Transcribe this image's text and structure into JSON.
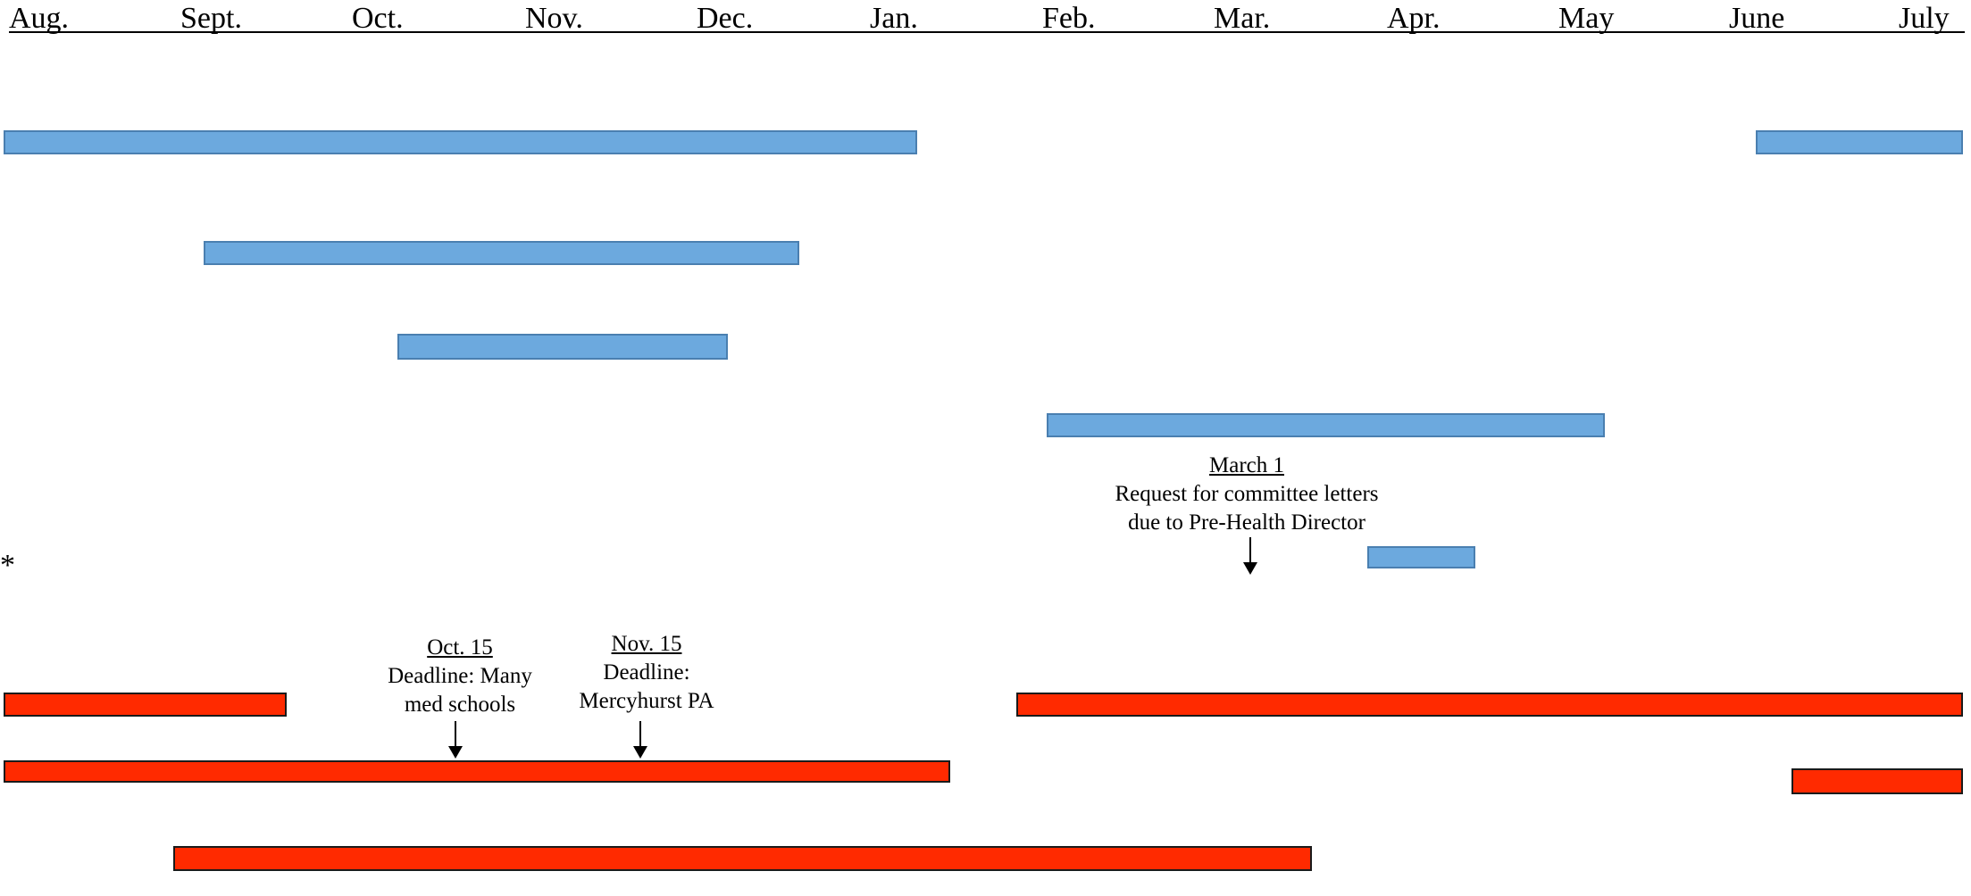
{
  "months": [
    "Aug.",
    "Sept.",
    "Oct.",
    "Nov.",
    "Dec.",
    "Jan.",
    "Feb.",
    "Mar.",
    "Apr.",
    "May",
    "June",
    "July"
  ],
  "colors": {
    "blue_fill": "#6CA9DE",
    "blue_border": "#4A7FB0",
    "red_fill": "#FF2A00",
    "red_border": "#1a1a1a"
  },
  "annotations": {
    "oct15": {
      "date": "Oct. 15",
      "line1": "Deadline: Many",
      "line2": "med schools"
    },
    "nov15": {
      "date": "Nov. 15",
      "line1": "Deadline:",
      "line2": "Mercyhurst PA"
    },
    "mar1": {
      "date": "March 1",
      "line1": "Request for committee letters",
      "line2": "due to Pre-Health Director"
    }
  },
  "asterisk": "*"
}
